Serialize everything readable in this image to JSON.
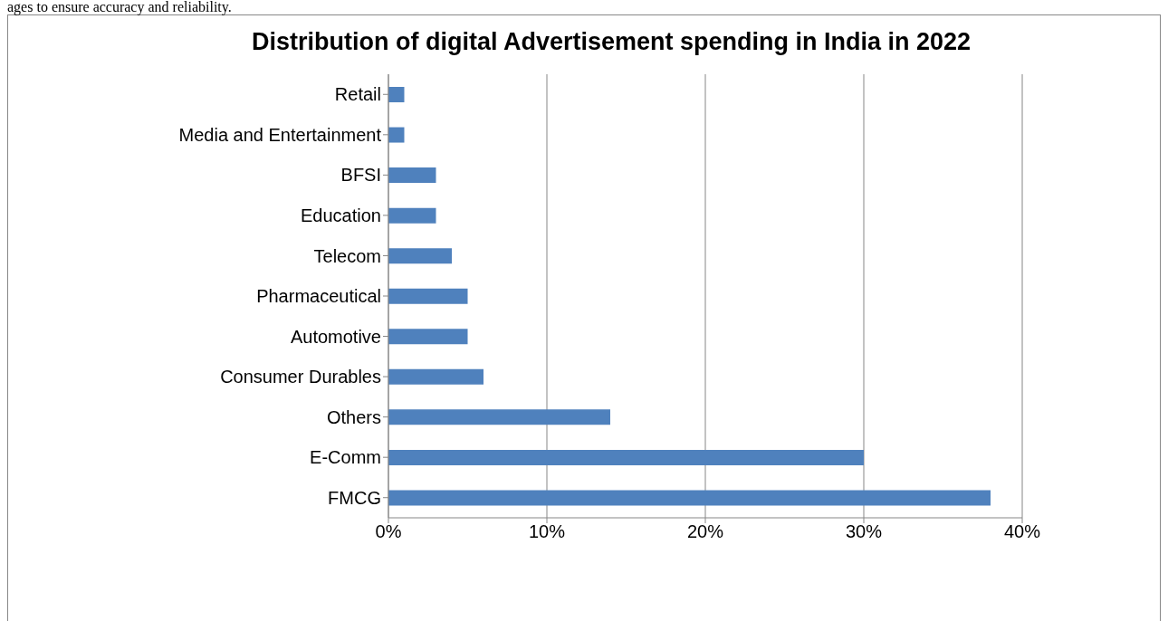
{
  "chart_data": {
    "type": "bar",
    "orientation": "horizontal",
    "title": "Distribution of digital Advertisement spending in India in 2022",
    "annotations": [
      "ages to ensure accuracy and reliability."
    ],
    "categories": [
      "Retail",
      "Media and Entertainment",
      "BFSI",
      "Education",
      "Telecom",
      "Pharmaceutical",
      "Automotive",
      "Consumer Durables",
      "Others",
      "E-Comm",
      "FMCG"
    ],
    "values": [
      1,
      1,
      3,
      3,
      4,
      5,
      5,
      6,
      14,
      30,
      38
    ],
    "color": "#4f81bd",
    "xlim": [
      0,
      40
    ],
    "xticks": [
      {
        "value": 0,
        "label": "0%"
      },
      {
        "value": 10,
        "label": "10%"
      },
      {
        "value": 20,
        "label": "20%"
      },
      {
        "value": 30,
        "label": "30%"
      },
      {
        "value": 40,
        "label": "40%"
      }
    ],
    "grid": "x"
  }
}
